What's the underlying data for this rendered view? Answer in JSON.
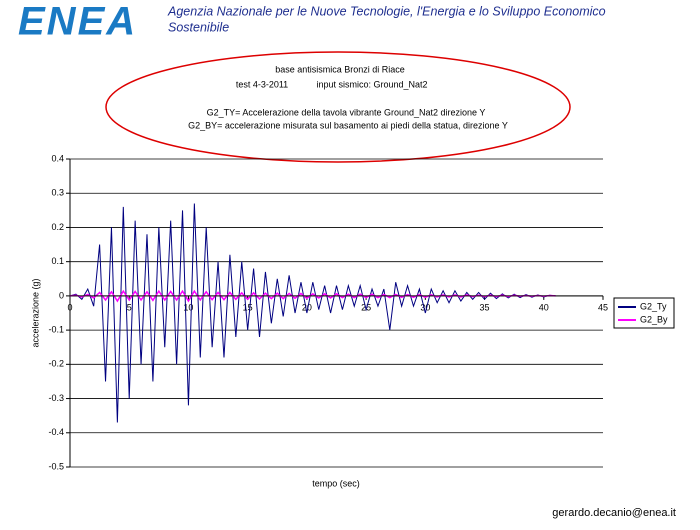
{
  "header": {
    "logo": "ENEA",
    "agency": [
      "Agenzia Nazionale per le Nuove Tecnologie, l'Energia e lo Sviluppo Economico",
      "Sostenibile"
    ]
  },
  "footer": {
    "email": "gerardo.decanio@enea.it"
  },
  "chart_data": {
    "type": "line",
    "annotations": [
      "base antisismica Bronzi di Riace",
      "test 4-3-2011",
      "input sismico: Ground_Nat2",
      "G2_TY= Accelerazione della tavola vibrante  Ground_Nat2  direzione Y",
      "G2_BY= accelerazione misurata sul basamento ai piedi della statua,   direzione Y"
    ],
    "x_label": "tempo (sec)",
    "y_label": "accelerazione (g)",
    "xlim": [
      0,
      45
    ],
    "xticks": [
      0,
      5,
      10,
      15,
      20,
      25,
      30,
      35,
      40,
      45
    ],
    "ylim": [
      -0.5,
      0.4
    ],
    "yticks": [
      -0.5,
      -0.4,
      -0.3,
      -0.2,
      -0.1,
      0,
      0.1,
      0.2,
      0.3,
      0.4
    ],
    "grid": true,
    "x": [
      0,
      0.5,
      1,
      1.5,
      2,
      2.5,
      3,
      3.5,
      4,
      4.5,
      5,
      5.5,
      6,
      6.5,
      7,
      7.5,
      8,
      8.5,
      9,
      9.5,
      10,
      10.5,
      11,
      11.5,
      12,
      12.5,
      13,
      13.5,
      14,
      14.5,
      15,
      15.5,
      16,
      16.5,
      17,
      17.5,
      18,
      18.5,
      19,
      19.5,
      20,
      20.5,
      21,
      21.5,
      22,
      22.5,
      23,
      23.5,
      24,
      24.5,
      25,
      25.5,
      26,
      26.5,
      27,
      27.5,
      28,
      28.5,
      29,
      29.5,
      30,
      30.5,
      31,
      31.5,
      32,
      32.5,
      33,
      33.5,
      34,
      34.5,
      35,
      35.5,
      36,
      36.5,
      37,
      37.5,
      38,
      38.5,
      39,
      39.5,
      40,
      40.5,
      41
    ],
    "series": [
      {
        "name": "G2_Ty",
        "color": "#000080",
        "values": [
          0,
          0.005,
          -0.01,
          0.02,
          -0.03,
          0.15,
          -0.25,
          0.2,
          -0.37,
          0.26,
          -0.3,
          0.22,
          -0.2,
          0.18,
          -0.25,
          0.2,
          -0.15,
          0.22,
          -0.2,
          0.25,
          -0.32,
          0.27,
          -0.18,
          0.2,
          -0.15,
          0.1,
          -0.18,
          0.12,
          -0.12,
          0.1,
          -0.1,
          0.08,
          -0.12,
          0.07,
          -0.08,
          0.05,
          -0.06,
          0.06,
          -0.05,
          0.04,
          -0.05,
          0.04,
          -0.04,
          0.03,
          -0.05,
          0.03,
          -0.04,
          0.03,
          -0.03,
          0.03,
          -0.04,
          0.02,
          -0.03,
          0.02,
          -0.1,
          0.04,
          -0.03,
          0.03,
          -0.03,
          0.02,
          -0.05,
          0.02,
          -0.02,
          0.015,
          -0.02,
          0.015,
          -0.015,
          0.01,
          -0.01,
          0.01,
          -0.01,
          0.008,
          -0.008,
          0.006,
          -0.006,
          0.005,
          -0.005,
          0.004,
          -0.004,
          0.003,
          -0.003,
          0.002,
          0
        ]
      },
      {
        "name": "G2_By",
        "color": "#ff00ff",
        "values": [
          0,
          0.002,
          -0.003,
          0.004,
          -0.006,
          0.01,
          -0.012,
          0.012,
          -0.015,
          0.014,
          -0.012,
          0.013,
          -0.012,
          0.012,
          -0.013,
          0.014,
          -0.012,
          0.013,
          -0.012,
          0.014,
          -0.015,
          0.014,
          -0.012,
          0.012,
          -0.011,
          0.01,
          -0.011,
          0.01,
          -0.01,
          0.009,
          -0.01,
          0.009,
          -0.009,
          0.008,
          -0.008,
          0.008,
          -0.008,
          0.007,
          -0.007,
          0.007,
          -0.007,
          0.006,
          -0.006,
          0.006,
          -0.006,
          0.006,
          -0.005,
          0.005,
          -0.005,
          0.005,
          -0.005,
          0.005,
          -0.005,
          0.004,
          -0.005,
          0.004,
          -0.004,
          0.004,
          -0.004,
          0.004,
          -0.004,
          0.003,
          -0.003,
          0.003,
          -0.003,
          0.003,
          -0.003,
          0.003,
          -0.002,
          0.002,
          -0.002,
          0.002,
          -0.002,
          0.002,
          -0.002,
          0.002,
          -0.001,
          0.001,
          -0.001,
          0.001,
          -0.001,
          0.001,
          0
        ]
      }
    ]
  }
}
